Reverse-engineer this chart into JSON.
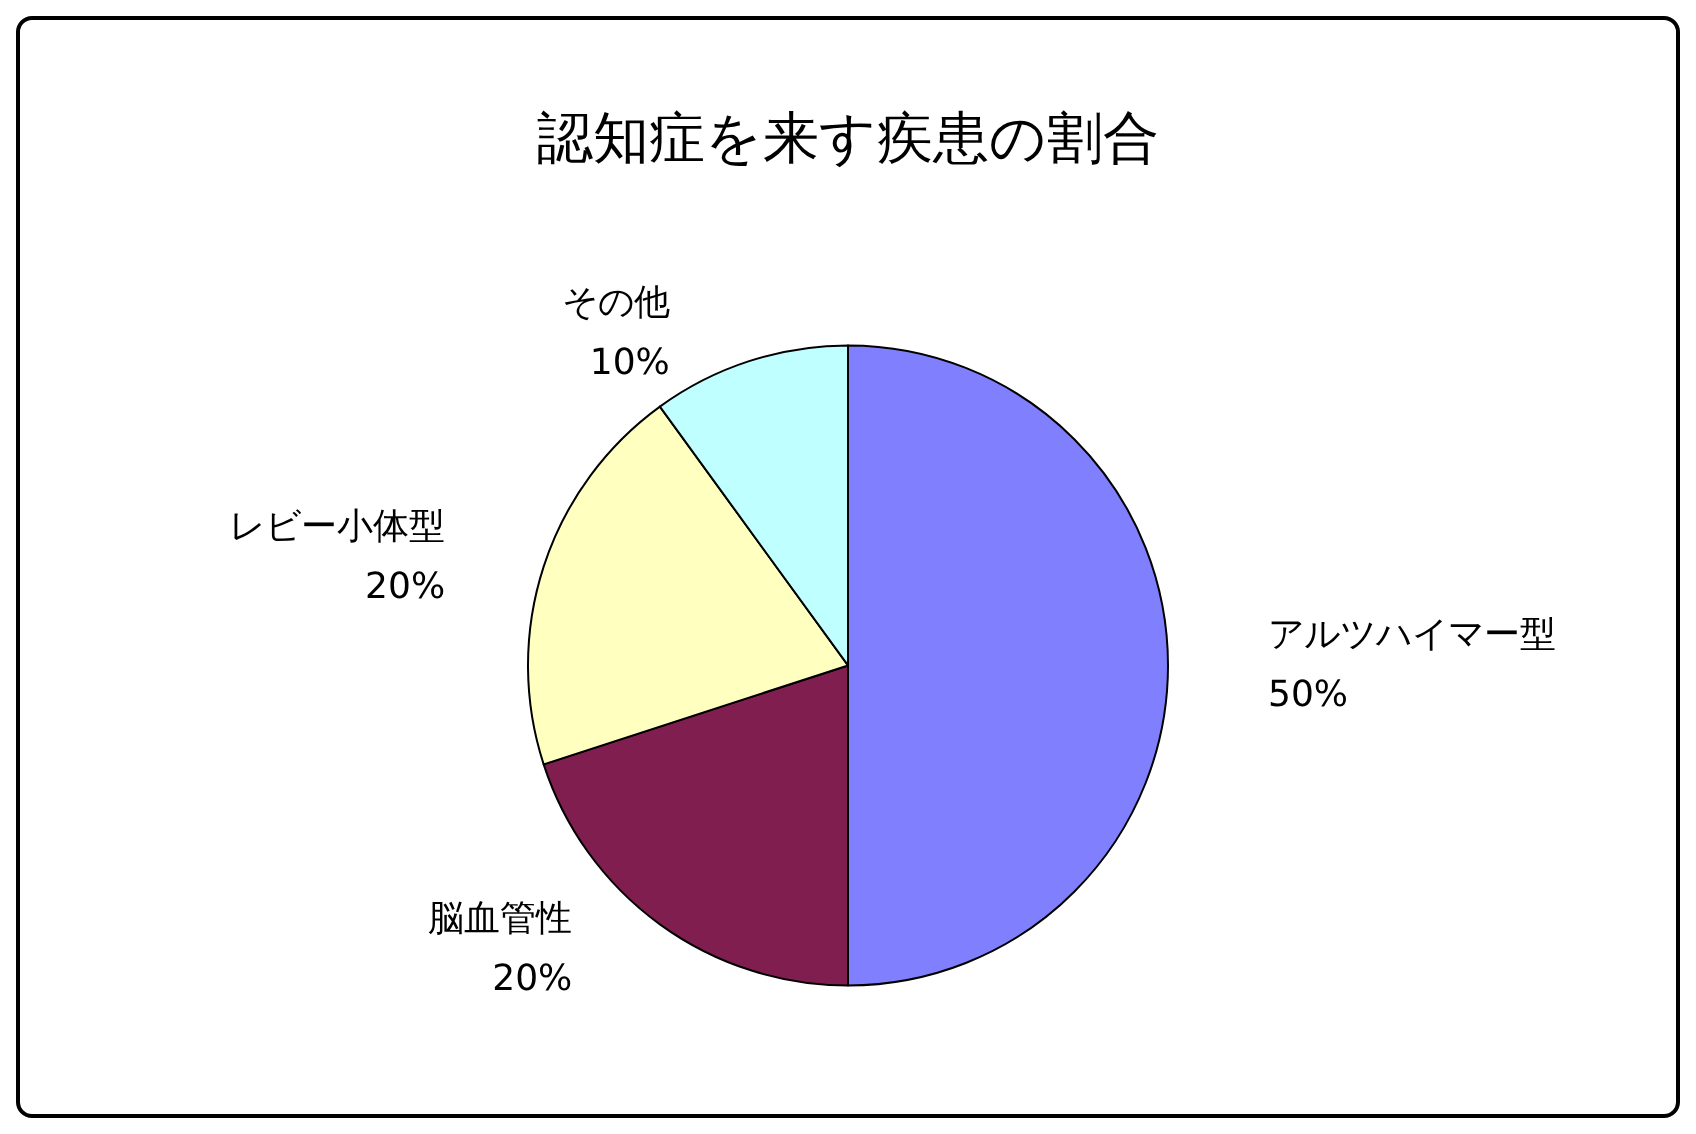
{
  "chart_data": {
    "type": "pie",
    "title": "認知症を来す疾患の割合",
    "categories": [
      "アルツハイマー型",
      "脳血管性",
      "レビー小体型",
      "その他"
    ],
    "values": [
      50,
      20,
      20,
      10
    ],
    "value_labels": [
      "50%",
      "20%",
      "20%",
      "10%"
    ],
    "colors": [
      "#8080ff",
      "#801f4f",
      "#ffffc0",
      "#c0ffff"
    ],
    "legend": false
  }
}
